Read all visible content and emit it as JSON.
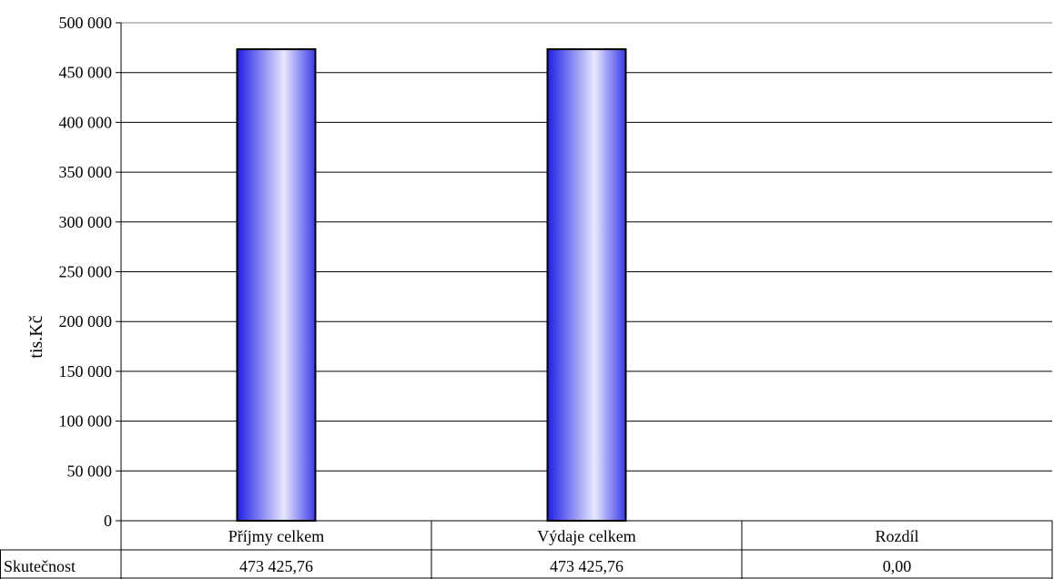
{
  "chart_data": {
    "type": "bar",
    "categories": [
      "Příjmy celkem",
      "Výdaje celkem",
      "Rozdíl"
    ],
    "series": [
      {
        "name": "Skutečnost",
        "values": [
          473425.76,
          473425.76,
          0
        ]
      }
    ],
    "table_values": [
      "473 425,76",
      "473 425,76",
      "0,00"
    ],
    "ylabel": "tis.Kč",
    "ylim": [
      0,
      500000
    ],
    "yticks": [
      0,
      50000,
      100000,
      150000,
      200000,
      250000,
      300000,
      350000,
      400000,
      450000,
      500000
    ],
    "ytick_labels": [
      "0",
      "50 000",
      "100 000",
      "150 000",
      "200 000",
      "250 000",
      "300 000",
      "350 000",
      "400 000",
      "450 000",
      "500 000"
    ],
    "grid": true,
    "legend": "data-table",
    "colors": {
      "bar_dark": "#1f1fe6",
      "bar_light": "#e8e8ff",
      "grid": "#000000"
    }
  }
}
